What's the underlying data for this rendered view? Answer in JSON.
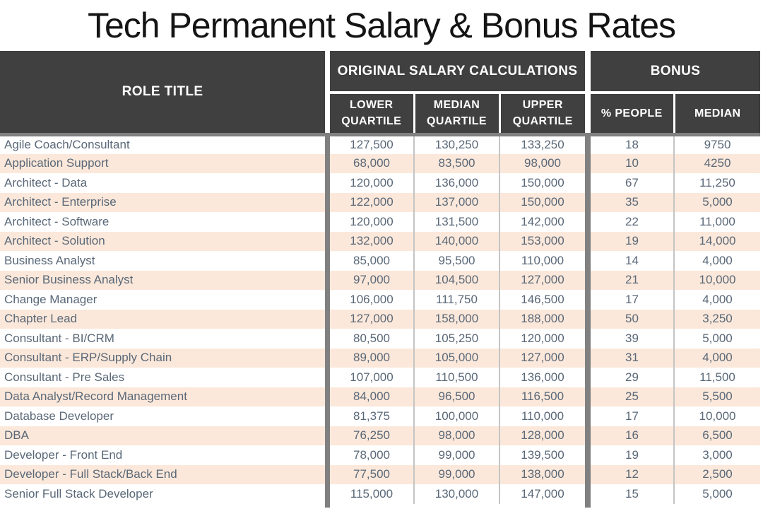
{
  "title": "Tech Permanent Salary & Bonus Rates",
  "table": {
    "role_header": "ROLE TITLE",
    "salary_group_header": "ORIGINAL SALARY CALCULATIONS",
    "bonus_group_header": "BONUS",
    "subheaders": {
      "lower": "LOWER QUARTILE",
      "median": "MEDIAN QUARTILE",
      "upper": "UPPER QUARTILE",
      "people": "% PEOPLE",
      "bonus_median": "MEDIAN"
    }
  },
  "colors": {
    "header_bg": "#404040",
    "header_text": "#ffffff",
    "stripe_peach": "#fbe8da",
    "row_white": "#ffffff",
    "thick_separator": "#808080",
    "thin_border": "#c4c4c4",
    "body_text": "#5a6878",
    "title_text": "#141414"
  },
  "chart_data": {
    "type": "table",
    "title": "Tech Permanent Salary & Bonus Rates",
    "column_groups": [
      {
        "label": "",
        "columns": [
          "ROLE TITLE"
        ]
      },
      {
        "label": "ORIGINAL SALARY CALCULATIONS",
        "columns": [
          "LOWER QUARTILE",
          "MEDIAN QUARTILE",
          "UPPER QUARTILE"
        ]
      },
      {
        "label": "BONUS",
        "columns": [
          "% PEOPLE",
          "MEDIAN"
        ]
      }
    ],
    "columns": [
      "ROLE TITLE",
      "LOWER QUARTILE",
      "MEDIAN QUARTILE",
      "UPPER QUARTILE",
      "% PEOPLE",
      "MEDIAN"
    ],
    "rows": [
      {
        "role": "Agile Coach/Consultant",
        "lower_quartile": "127,500",
        "median_quartile": "130,250",
        "upper_quartile": "133,250",
        "pct_people": "18",
        "bonus_median": "9750"
      },
      {
        "role": "Application Support",
        "lower_quartile": "68,000",
        "median_quartile": "83,500",
        "upper_quartile": "98,000",
        "pct_people": "10",
        "bonus_median": "4250"
      },
      {
        "role": "Architect - Data",
        "lower_quartile": "120,000",
        "median_quartile": "136,000",
        "upper_quartile": "150,000",
        "pct_people": "67",
        "bonus_median": "11,250"
      },
      {
        "role": "Architect - Enterprise",
        "lower_quartile": "122,000",
        "median_quartile": "137,000",
        "upper_quartile": "150,000",
        "pct_people": "35",
        "bonus_median": "5,000"
      },
      {
        "role": "Architect - Software",
        "lower_quartile": "120,000",
        "median_quartile": "131,500",
        "upper_quartile": "142,000",
        "pct_people": "22",
        "bonus_median": "11,000"
      },
      {
        "role": "Architect - Solution",
        "lower_quartile": "132,000",
        "median_quartile": "140,000",
        "upper_quartile": "153,000",
        "pct_people": "19",
        "bonus_median": "14,000"
      },
      {
        "role": "Business Analyst",
        "lower_quartile": "85,000",
        "median_quartile": "95,500",
        "upper_quartile": "110,000",
        "pct_people": "14",
        "bonus_median": "4,000"
      },
      {
        "role": "Senior Business Analyst",
        "lower_quartile": "97,000",
        "median_quartile": "104,500",
        "upper_quartile": "127,000",
        "pct_people": "21",
        "bonus_median": "10,000"
      },
      {
        "role": "Change Manager",
        "lower_quartile": "106,000",
        "median_quartile": "111,750",
        "upper_quartile": "146,500",
        "pct_people": "17",
        "bonus_median": "4,000"
      },
      {
        "role": "Chapter Lead",
        "lower_quartile": "127,000",
        "median_quartile": "158,000",
        "upper_quartile": "188,000",
        "pct_people": "50",
        "bonus_median": "3,250"
      },
      {
        "role": "Consultant - BI/CRM",
        "lower_quartile": "80,500",
        "median_quartile": "105,250",
        "upper_quartile": "120,000",
        "pct_people": "39",
        "bonus_median": "5,000"
      },
      {
        "role": "Consultant - ERP/Supply Chain",
        "lower_quartile": "89,000",
        "median_quartile": "105,000",
        "upper_quartile": "127,000",
        "pct_people": "31",
        "bonus_median": "4,000"
      },
      {
        "role": "Consultant - Pre Sales",
        "lower_quartile": "107,000",
        "median_quartile": "110,500",
        "upper_quartile": "136,000",
        "pct_people": "29",
        "bonus_median": "11,500"
      },
      {
        "role": "Data Analyst/Record Management",
        "lower_quartile": "84,000",
        "median_quartile": "96,500",
        "upper_quartile": "116,500",
        "pct_people": "25",
        "bonus_median": "5,500"
      },
      {
        "role": "Database Developer",
        "lower_quartile": "81,375",
        "median_quartile": "100,000",
        "upper_quartile": "110,000",
        "pct_people": "17",
        "bonus_median": "10,000"
      },
      {
        "role": "DBA",
        "lower_quartile": "76,250",
        "median_quartile": "98,000",
        "upper_quartile": "128,000",
        "pct_people": "16",
        "bonus_median": "6,500"
      },
      {
        "role": "Developer - Front End",
        "lower_quartile": "78,000",
        "median_quartile": "99,000",
        "upper_quartile": "139,500",
        "pct_people": "19",
        "bonus_median": "3,000"
      },
      {
        "role": "Developer - Full Stack/Back End",
        "lower_quartile": "77,500",
        "median_quartile": "99,000",
        "upper_quartile": "138,000",
        "pct_people": "12",
        "bonus_median": "2,500"
      },
      {
        "role": "Senior Full Stack Developer",
        "lower_quartile": "115,000",
        "median_quartile": "130,000",
        "upper_quartile": "147,000",
        "pct_people": "15",
        "bonus_median": "5,000"
      }
    ]
  }
}
